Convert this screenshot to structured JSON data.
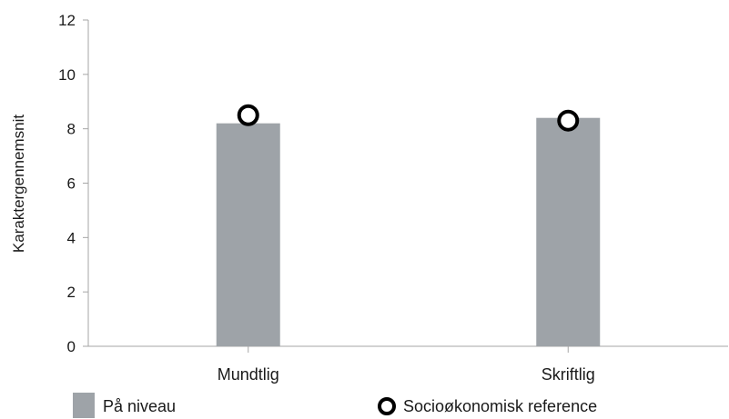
{
  "chart_data": {
    "type": "bar",
    "categories": [
      "Mundtlig",
      "Skriftlig"
    ],
    "series": [
      {
        "name": "På niveau",
        "kind": "bar",
        "values": [
          8.2,
          8.4
        ],
        "color": "#9ea3a8"
      },
      {
        "name": "Socioøkonomisk reference",
        "kind": "marker",
        "values": [
          8.5,
          8.3
        ],
        "color": "#000000"
      }
    ],
    "ylabel": "Karaktergennemsnit",
    "ylim": [
      0,
      12
    ],
    "yticks": [
      0,
      2,
      4,
      6,
      8,
      10,
      12
    ],
    "grid": false,
    "legend_position": "bottom"
  }
}
